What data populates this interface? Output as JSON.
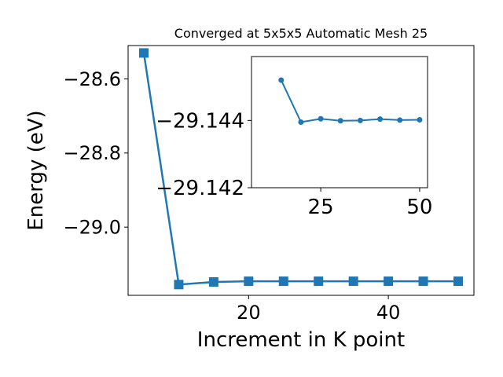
{
  "chart_data": [
    {
      "type": "line",
      "title": "Converged at 5x5x5 Automatic Mesh 25",
      "xlabel": "Increment in K point",
      "ylabel": "Energy (eV)",
      "x": [
        5,
        10,
        15,
        20,
        25,
        30,
        35,
        40,
        45,
        50
      ],
      "series": [
        {
          "values": [
            -28.53,
            -29.155,
            -29.148,
            -29.146,
            -29.146,
            -29.146,
            -29.146,
            -29.146,
            -29.146,
            -29.146
          ],
          "color": "#1f77b4",
          "marker": "square"
        }
      ],
      "xlim": [
        2.75,
        52.25
      ],
      "ylim": [
        -29.184,
        -28.51
      ],
      "xticks": [
        20,
        40
      ],
      "yticks": [
        -28.6,
        -28.8,
        -29.0
      ],
      "xtick_labels": [
        "20",
        "40"
      ],
      "ytick_labels": [
        "−28.6",
        "−28.8",
        "−29.0"
      ],
      "grid": false,
      "legend": "none"
    },
    {
      "type": "line",
      "title": "",
      "xlabel": "",
      "ylabel": "",
      "x": [
        15,
        20,
        25,
        30,
        35,
        40,
        45,
        50
      ],
      "series": [
        {
          "values": [
            -29.1452,
            -29.14395,
            -29.14405,
            -29.14399,
            -29.144,
            -29.14404,
            -29.14401,
            -29.14402
          ],
          "color": "#1f77b4",
          "marker": "circle"
        }
      ],
      "xlim": [
        7.5,
        52
      ],
      "ylim": [
        -29.142,
        -29.1459
      ],
      "xticks": [
        25,
        50
      ],
      "yticks": [
        -29.144,
        -29.142
      ],
      "xtick_labels": [
        "25",
        "50"
      ],
      "ytick_labels": [
        "−29.144",
        "−29.142"
      ],
      "grid": false,
      "legend": "none"
    }
  ]
}
